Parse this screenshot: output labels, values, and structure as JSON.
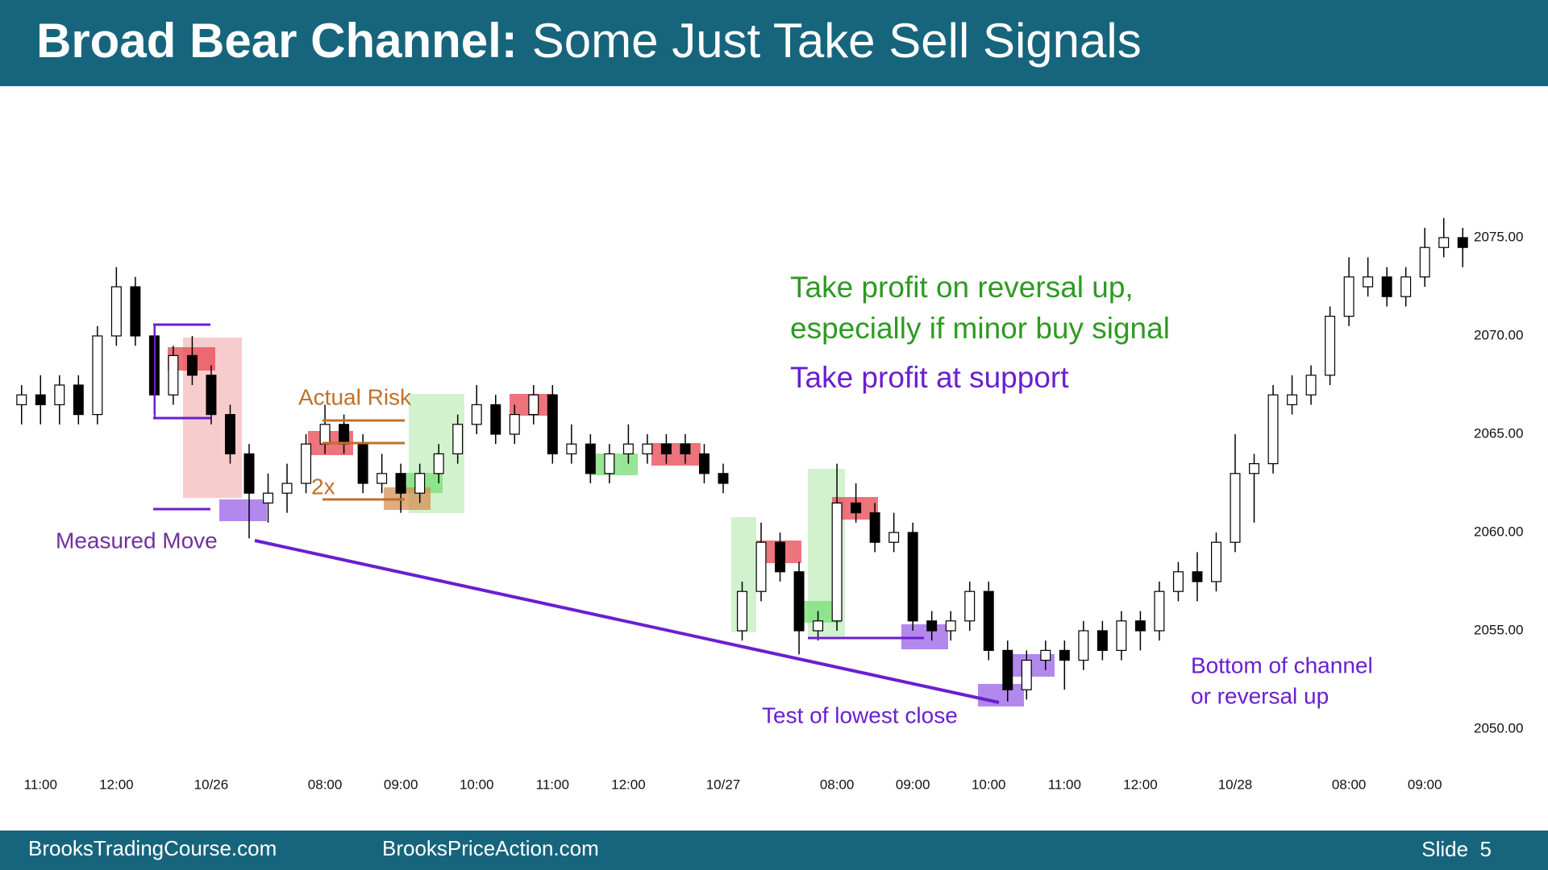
{
  "chart_data": {
    "type": "candlestick",
    "title": "Broad Bear Channel:",
    "subtitle": "Some Just Take Sell Signals",
    "annotations": [
      "Actual Risk",
      "2x",
      "Measured Move",
      "Take profit on reversal up,",
      "especially if minor buy signal",
      "Take profit at support",
      "Test of lowest close",
      "Bottom of channel",
      "or reversal up"
    ],
    "up_color": "#ffffff",
    "down_color": "#000000",
    "wick_color": "#000000",
    "xlim": [
      -0.5,
      76.5
    ],
    "xticks": [
      {
        "value": 1,
        "label": "11:00"
      },
      {
        "value": 5,
        "label": "12:00"
      },
      {
        "value": 10,
        "label": "10/26"
      },
      {
        "value": 16,
        "label": "08:00"
      },
      {
        "value": 20,
        "label": "09:00"
      },
      {
        "value": 24,
        "label": "10:00"
      },
      {
        "value": 28,
        "label": "11:00"
      },
      {
        "value": 32,
        "label": "12:00"
      },
      {
        "value": 37,
        "label": "10/27"
      },
      {
        "value": 43,
        "label": "08:00"
      },
      {
        "value": 47,
        "label": "09:00"
      },
      {
        "value": 51,
        "label": "10:00"
      },
      {
        "value": 55,
        "label": "11:00"
      },
      {
        "value": 59,
        "label": "12:00"
      },
      {
        "value": 64,
        "label": "10/28"
      },
      {
        "value": 70,
        "label": "08:00"
      },
      {
        "value": 74,
        "label": "09:00"
      }
    ],
    "ylim": [
      2047,
      2079
    ],
    "yticks": [
      {
        "value": 2050,
        "label": "2050.00"
      },
      {
        "value": 2055,
        "label": "2055.00"
      },
      {
        "value": 2060,
        "label": "2060.00"
      },
      {
        "value": 2065,
        "label": "2065.00"
      },
      {
        "value": 2070,
        "label": "2070.00"
      },
      {
        "value": 2075,
        "label": "2075.00"
      }
    ],
    "candles": [
      [
        2066.5,
        2067.5,
        2065.5,
        2067
      ],
      [
        2067,
        2068,
        2065.5,
        2066.5
      ],
      [
        2066.5,
        2068,
        2065.5,
        2067.5
      ],
      [
        2067.5,
        2068,
        2065.5,
        2066
      ],
      [
        2066,
        2070.5,
        2065.5,
        2070
      ],
      [
        2070,
        2073.5,
        2069.5,
        2072.5
      ],
      [
        2072.5,
        2073,
        2069.5,
        2070
      ],
      [
        2070,
        2070.5,
        2066,
        2067
      ],
      [
        2067,
        2069.5,
        2066.5,
        2069
      ],
      [
        2069,
        2070,
        2067.5,
        2068
      ],
      [
        2068,
        2068.5,
        2065.5,
        2066
      ],
      [
        2066,
        2066.5,
        2063.5,
        2064
      ],
      [
        2064,
        2064.5,
        2059.7,
        2062
      ],
      [
        2061.5,
        2063,
        2060.5,
        2062
      ],
      [
        2062,
        2063.5,
        2061,
        2062.5
      ],
      [
        2062.5,
        2065,
        2062,
        2064.5
      ],
      [
        2064.5,
        2066.5,
        2064,
        2065.5
      ],
      [
        2065.5,
        2066,
        2064,
        2064.5
      ],
      [
        2064.5,
        2065,
        2062,
        2062.5
      ],
      [
        2062.5,
        2064,
        2062,
        2063
      ],
      [
        2063,
        2063.5,
        2061,
        2062
      ],
      [
        2062,
        2063.5,
        2061.5,
        2063
      ],
      [
        2063,
        2064.5,
        2062.5,
        2064
      ],
      [
        2064,
        2066,
        2063.5,
        2065.5
      ],
      [
        2065.5,
        2067.5,
        2065,
        2066.5
      ],
      [
        2066.5,
        2067,
        2064.5,
        2065
      ],
      [
        2065,
        2066.5,
        2064.5,
        2066
      ],
      [
        2066,
        2067.5,
        2065.5,
        2067
      ],
      [
        2067,
        2067.5,
        2063.5,
        2064
      ],
      [
        2064,
        2065.5,
        2063.5,
        2064.5
      ],
      [
        2064.5,
        2065,
        2062.5,
        2063
      ],
      [
        2063,
        2064.5,
        2062.5,
        2064
      ],
      [
        2064,
        2065.5,
        2063.5,
        2064.5
      ],
      [
        2064,
        2065,
        2063.5,
        2064.5
      ],
      [
        2064.5,
        2065,
        2063.5,
        2064
      ],
      [
        2064.5,
        2065,
        2063.5,
        2064
      ],
      [
        2064,
        2064.5,
        2062.5,
        2063
      ],
      [
        2063,
        2063.5,
        2062,
        2062.5
      ],
      [
        2055,
        2057.5,
        2054.5,
        2057
      ],
      [
        2057,
        2060.5,
        2056.5,
        2059.5
      ],
      [
        2059.5,
        2060,
        2057.5,
        2058
      ],
      [
        2058,
        2058.5,
        2053.8,
        2055
      ],
      [
        2055,
        2056,
        2054.5,
        2055.5
      ],
      [
        2055.5,
        2063.5,
        2055,
        2061.5
      ],
      [
        2061.5,
        2062.5,
        2060.5,
        2061
      ],
      [
        2061,
        2061.5,
        2059,
        2059.5
      ],
      [
        2059.5,
        2061,
        2059,
        2060
      ],
      [
        2060,
        2060.5,
        2055,
        2055.5
      ],
      [
        2055.5,
        2056,
        2054.5,
        2055
      ],
      [
        2055,
        2056,
        2054.5,
        2055.5
      ],
      [
        2055.5,
        2057.5,
        2055,
        2057
      ],
      [
        2057,
        2057.5,
        2053.5,
        2054
      ],
      [
        2054,
        2054.5,
        2051.4,
        2052
      ],
      [
        2052,
        2054,
        2051.5,
        2053.5
      ],
      [
        2053.5,
        2054.5,
        2053,
        2054
      ],
      [
        2054,
        2054.5,
        2052,
        2053.5
      ],
      [
        2053.5,
        2055.5,
        2053,
        2055
      ],
      [
        2055,
        2055.5,
        2053.5,
        2054
      ],
      [
        2054,
        2056,
        2053.5,
        2055.5
      ],
      [
        2055.5,
        2056,
        2054,
        2055
      ],
      [
        2055,
        2057.5,
        2054.5,
        2057
      ],
      [
        2057,
        2058.5,
        2056.5,
        2058
      ],
      [
        2058,
        2059,
        2056.5,
        2057.5
      ],
      [
        2057.5,
        2060,
        2057,
        2059.5
      ],
      [
        2059.5,
        2065,
        2059,
        2063
      ],
      [
        2063,
        2064,
        2060.5,
        2063.5
      ],
      [
        2063.5,
        2067.5,
        2063,
        2067
      ],
      [
        2066.5,
        2068,
        2066,
        2067
      ],
      [
        2067,
        2068.5,
        2066.5,
        2068
      ],
      [
        2068,
        2071.5,
        2067.5,
        2071
      ],
      [
        2071,
        2074,
        2070.5,
        2073
      ],
      [
        2072.5,
        2074,
        2072,
        2073
      ],
      [
        2073,
        2073.5,
        2071.5,
        2072
      ],
      [
        2072,
        2073.5,
        2071.5,
        2073
      ],
      [
        2073,
        2075.5,
        2072.5,
        2074.5
      ],
      [
        2074.5,
        2076,
        2074,
        2075
      ],
      [
        2075,
        2075.5,
        2073.5,
        2074.5
      ]
    ]
  },
  "footer": {
    "left": "BrooksTradingCourse.com",
    "center": "BrooksPriceAction.com",
    "slide": "Slide  5"
  }
}
